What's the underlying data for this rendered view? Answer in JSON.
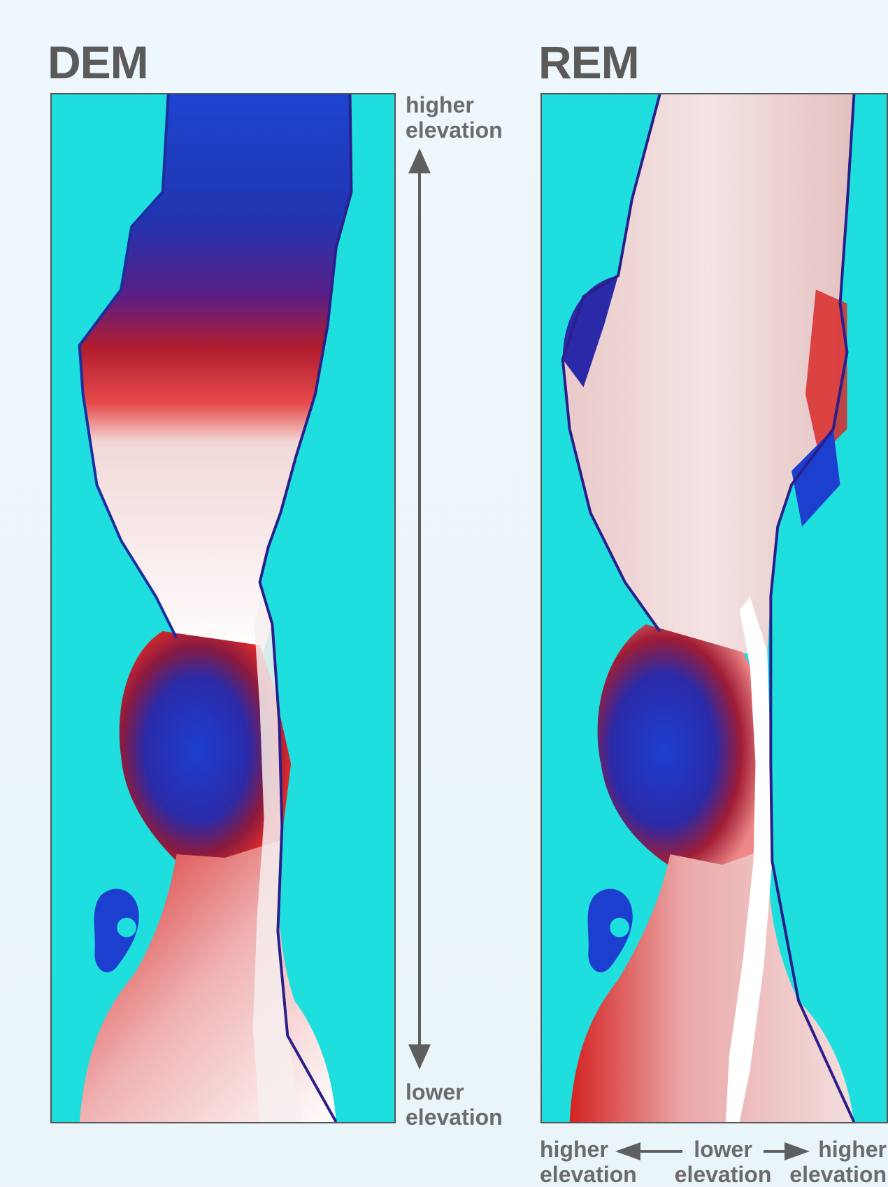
{
  "dem": {
    "title": "DEM",
    "higher_label_1": "higher",
    "higher_label_2": "elevation",
    "lower_label_1": "lower",
    "lower_label_2": "elevation"
  },
  "rem": {
    "title": "REM",
    "left_label_1": "higher",
    "left_label_2": "elevation",
    "center_label_1": "lower",
    "center_label_2": "elevation",
    "right_label_1": "higher",
    "right_label_2": "elevation"
  },
  "colors": {
    "background": "#1fdede",
    "high": "#1a3fc4",
    "mid": "#d62020",
    "low": "#ffffff",
    "text": "#666666"
  }
}
